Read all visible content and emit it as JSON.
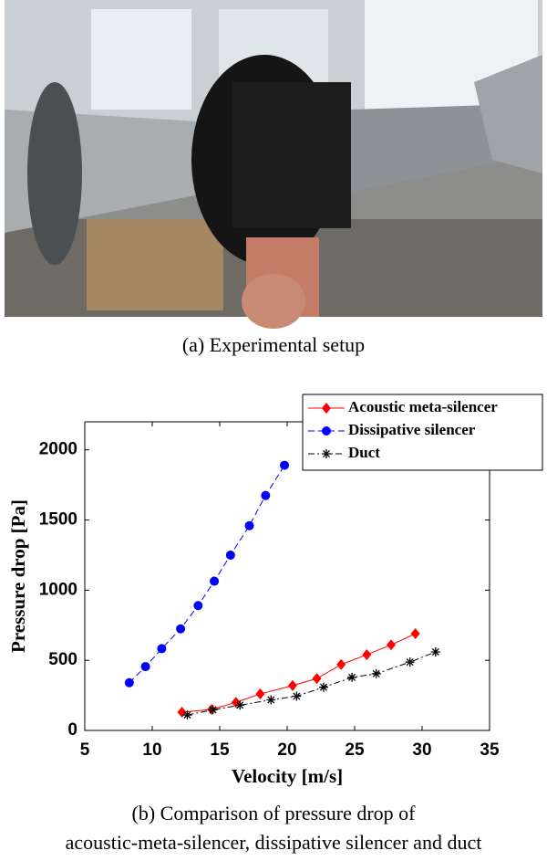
{
  "caption_a": "(a)  Experimental  setup",
  "caption_b": [
    "(b)  Comparison  of  pressure  drop  of",
    "acoustic-meta-silencer,  dissipative  silencer  and  duct"
  ],
  "chart_data": {
    "type": "line",
    "xlabel": "Velocity [m/s]",
    "ylabel": "Pressure drop [Pa]",
    "xlim": [
      5,
      35
    ],
    "xticks": [
      5,
      10,
      15,
      20,
      25,
      30,
      35
    ],
    "ylim": [
      0,
      2200
    ],
    "yticks": [
      0,
      500,
      1000,
      1500,
      2000
    ],
    "legend": "upper right",
    "series": [
      {
        "name": "Acoustic meta-silencer",
        "color": "#ff0000",
        "marker": "diamond",
        "linestyle": "solid",
        "x": [
          12.2,
          14.4,
          16.2,
          18.0,
          20.4,
          22.2,
          24.0,
          25.9,
          27.7,
          29.5
        ],
        "values": [
          130,
          150,
          200,
          260,
          320,
          370,
          470,
          540,
          610,
          690
        ]
      },
      {
        "name": "Dissipative silencer",
        "color": "#0000ff",
        "marker": "circle",
        "linestyle": "dashed",
        "x": [
          8.3,
          9.5,
          10.7,
          12.1,
          13.4,
          14.6,
          15.8,
          17.2,
          18.4,
          19.8
        ],
        "values": [
          340,
          455,
          583,
          724,
          890,
          1064,
          1250,
          1460,
          1675,
          1890
        ]
      },
      {
        "name": "Duct",
        "color": "#000000",
        "marker": "star",
        "linestyle": "dashdot",
        "x": [
          12.6,
          14.5,
          16.5,
          18.8,
          20.7,
          22.7,
          24.8,
          26.6,
          29.1,
          31.0
        ],
        "values": [
          110,
          147,
          180,
          218,
          244,
          308,
          378,
          404,
          487,
          560
        ]
      }
    ]
  }
}
